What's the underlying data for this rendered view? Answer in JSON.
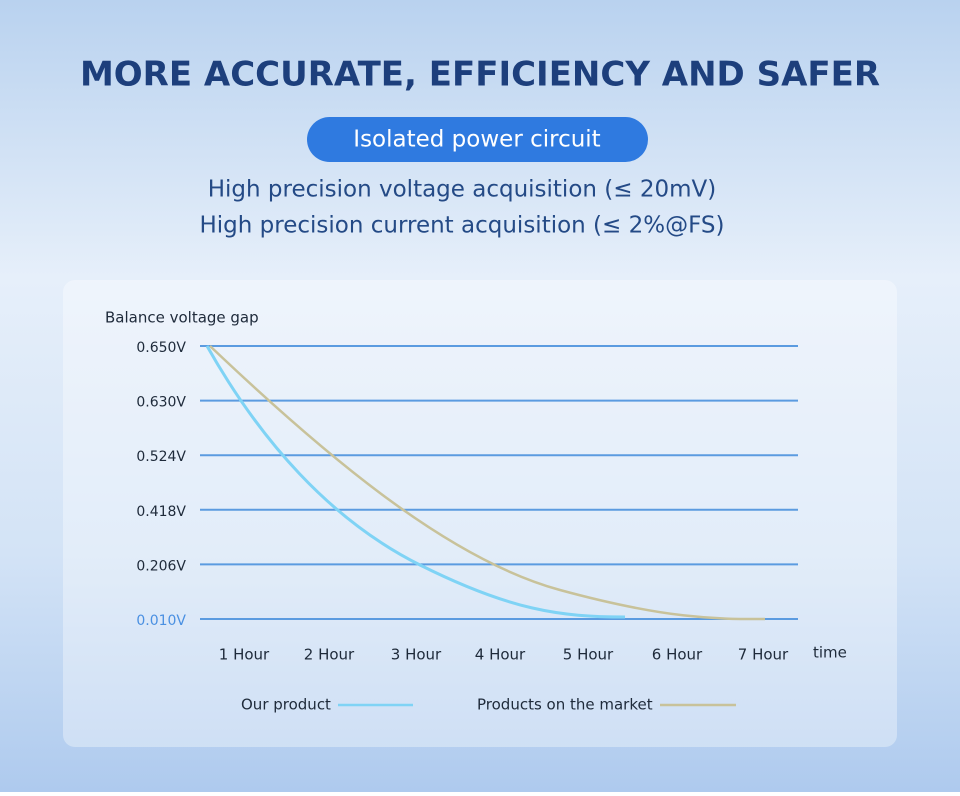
{
  "header": {
    "title": "MORE ACCURATE, EFFICIENCY AND SAFER",
    "badge": "Isolated power circuit",
    "lines": [
      "High precision voltage acquisition (≤ 20mV)",
      "High precision current acquisition (≤ 2%@FS)"
    ]
  },
  "chart": {
    "y_title": "Balance voltage gap",
    "y_labels": [
      "0.650V",
      "0.630V",
      "0.524V",
      "0.418V",
      "0.206V",
      "0.010V"
    ],
    "x_labels": [
      "1 Hour",
      "2 Hour",
      "3 Hour",
      "4 Hour",
      "5 Hour",
      "6 Hour",
      "7 Hour"
    ],
    "x_title": "time",
    "legend": [
      "Our product",
      "Products on the market"
    ]
  }
}
